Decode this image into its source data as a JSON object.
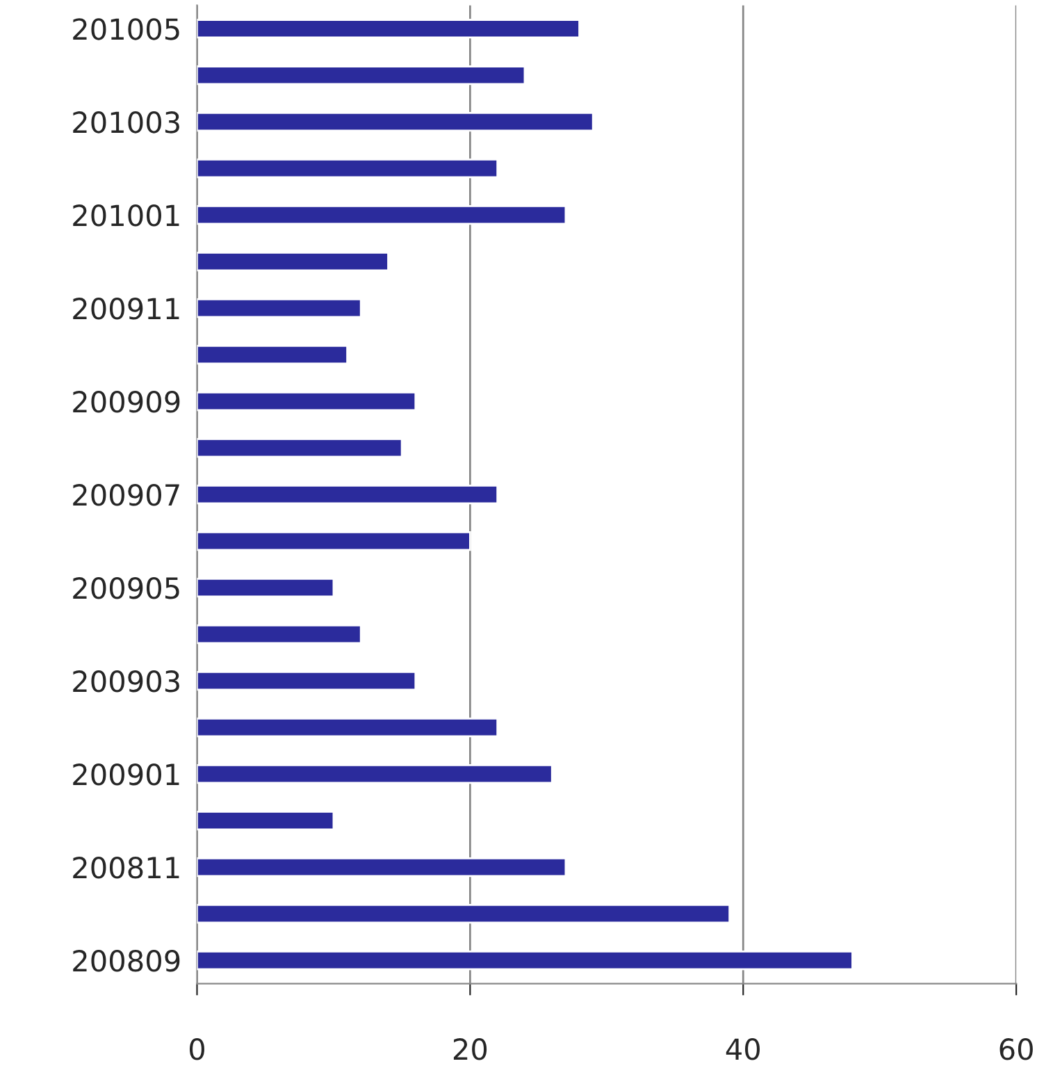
{
  "chart_data": {
    "type": "bar",
    "orientation": "horizontal",
    "categories": [
      "201005",
      null,
      "201003",
      null,
      "201001",
      null,
      "200911",
      null,
      "200909",
      null,
      "200907",
      null,
      "200905",
      null,
      "200903",
      null,
      "200901",
      null,
      "200811",
      null,
      "200809"
    ],
    "values": [
      28,
      24,
      29,
      22,
      27,
      14,
      12,
      11,
      16,
      15,
      22,
      20,
      10,
      12,
      16,
      22,
      26,
      10,
      27,
      39,
      48
    ],
    "color": "#2b2b9c",
    "xlim": [
      0,
      60
    ],
    "xticks": [
      0,
      20,
      40,
      60
    ],
    "grid": "x",
    "legend": false
  }
}
